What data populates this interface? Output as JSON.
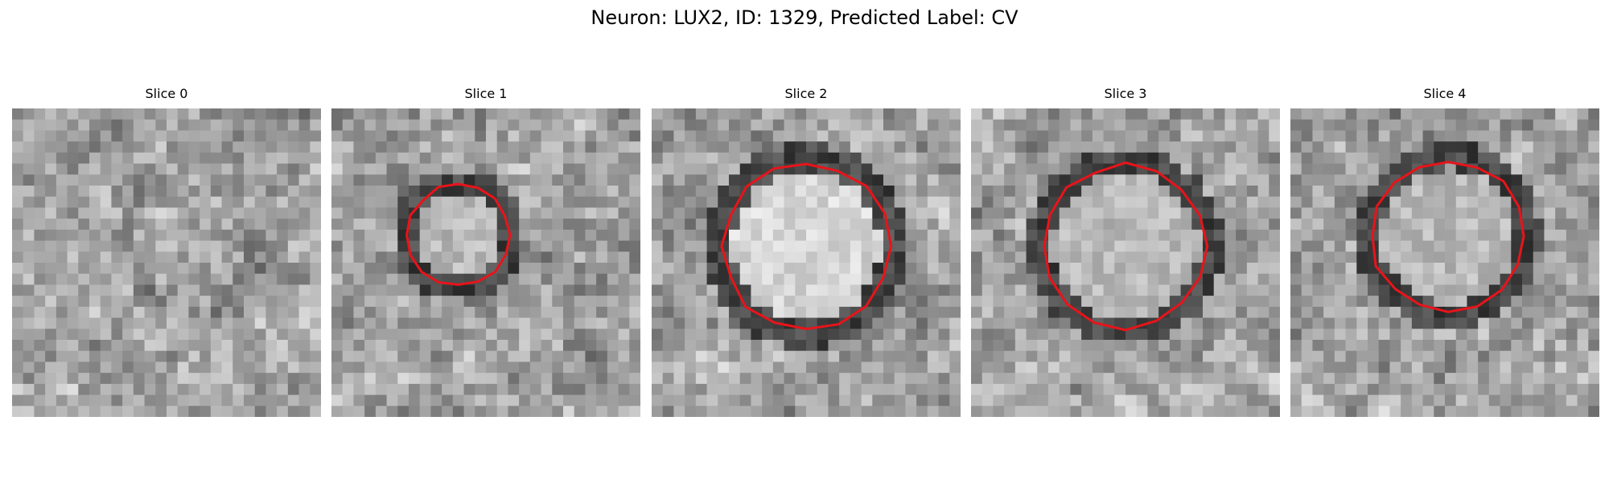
{
  "figure": {
    "title": "Neuron: LUX2, ID: 1329, Predicted Label: CV",
    "contour_color": "#e8141a",
    "colormap": "grayscale"
  },
  "panels": [
    {
      "title": "Slice 0",
      "has_contour": false,
      "center_tone": "mid-gray",
      "seed": 11
    },
    {
      "title": "Slice 1",
      "has_contour": true,
      "center_tone": "light-gray",
      "seed": 23
    },
    {
      "title": "Slice 2",
      "has_contour": true,
      "center_tone": "bright",
      "seed": 37
    },
    {
      "title": "Slice 3",
      "has_contour": true,
      "center_tone": "light-gray",
      "seed": 51
    },
    {
      "title": "Slice 4",
      "has_contour": true,
      "center_tone": "light-gray",
      "seed": 67
    }
  ]
}
